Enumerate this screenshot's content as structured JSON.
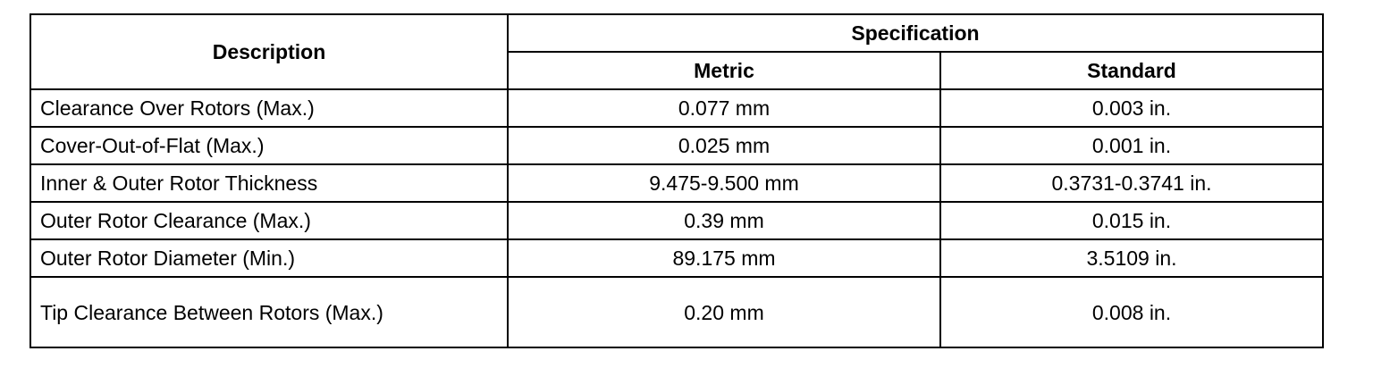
{
  "table": {
    "header": {
      "description": "Description",
      "specification": "Specification",
      "metric": "Metric",
      "standard": "Standard"
    },
    "rows": [
      [
        "Clearance Over Rotors (Max.)",
        "0.077 mm",
        "0.003 in."
      ],
      [
        "Cover-Out-of-Flat (Max.)",
        "0.025 mm",
        "0.001 in."
      ],
      [
        "Inner & Outer Rotor Thickness",
        "9.475-9.500 mm",
        "0.3731-0.3741 in."
      ],
      [
        "Outer Rotor Clearance (Max.)",
        "0.39 mm",
        "0.015 in."
      ],
      [
        "Outer Rotor Diameter (Min.)",
        "89.175 mm",
        "3.5109 in."
      ],
      [
        "Tip Clearance Between Rotors (Max.)",
        "0.20 mm",
        "0.008 in."
      ]
    ]
  }
}
